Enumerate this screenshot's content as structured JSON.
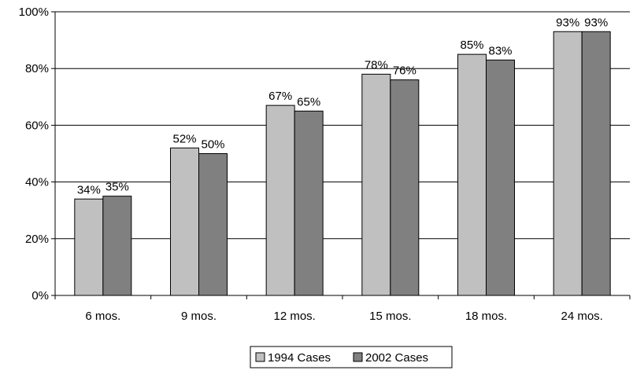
{
  "chart_data": {
    "type": "bar",
    "categories": [
      "6 mos.",
      "9 mos.",
      "12 mos.",
      "15 mos.",
      "18 mos.",
      "24 mos."
    ],
    "series": [
      {
        "name": "1994 Cases",
        "values": [
          34,
          52,
          67,
          78,
          85,
          93
        ],
        "labels": [
          "34%",
          "52%",
          "67%",
          "78%",
          "85%",
          "93%"
        ],
        "color": "#c0c0c0"
      },
      {
        "name": "2002 Cases",
        "values": [
          35,
          50,
          65,
          76,
          83,
          93
        ],
        "labels": [
          "35%",
          "50%",
          "65%",
          "76%",
          "83%",
          "93%"
        ],
        "color": "#808080"
      }
    ],
    "y_ticks": [
      0,
      20,
      40,
      60,
      80,
      100
    ],
    "y_tick_labels": [
      "0%",
      "20%",
      "40%",
      "60%",
      "80%",
      "100%"
    ],
    "ylim": [
      0,
      100
    ],
    "title": "",
    "xlabel": "",
    "ylabel": "",
    "grid": "horizontal",
    "legend_position": "bottom"
  }
}
